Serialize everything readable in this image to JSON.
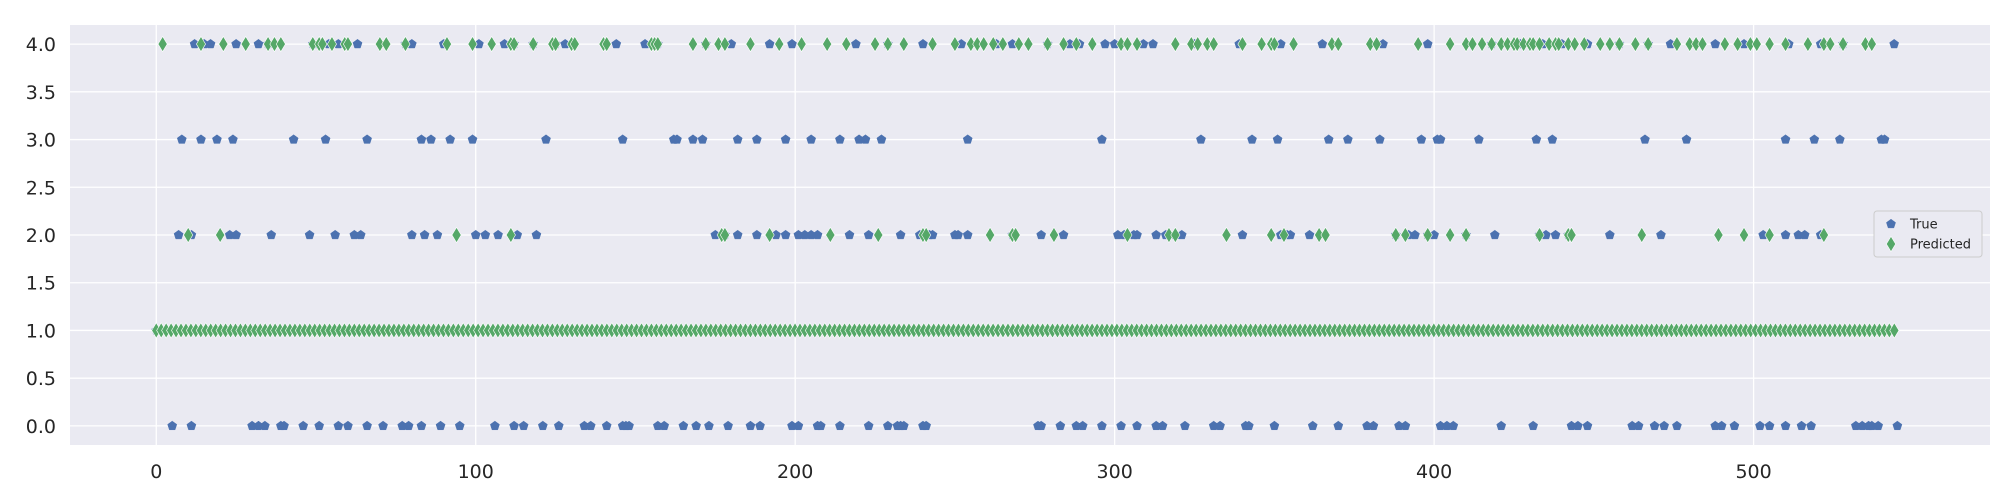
{
  "chart_data": {
    "type": "scatter",
    "title": "",
    "xlabel": "",
    "ylabel": "",
    "xlim": [
      -27,
      574
    ],
    "ylim": [
      -0.2,
      4.2
    ],
    "xticks": [
      0,
      100,
      200,
      300,
      400,
      500
    ],
    "yticks": [
      0.0,
      0.5,
      1.0,
      1.5,
      2.0,
      2.5,
      3.0,
      3.5,
      4.0
    ],
    "xtick_labels": [
      "0",
      "100",
      "200",
      "300",
      "400",
      "500"
    ],
    "ytick_labels": [
      "0.0",
      "0.5",
      "1.0",
      "1.5",
      "2.0",
      "2.5",
      "3.0",
      "3.5",
      "4.0"
    ],
    "grid": true,
    "legend_position": "center-right",
    "background": "#eaeaf2",
    "series": [
      {
        "name": "True",
        "marker": "pentagon",
        "color": "#4c72b0",
        "points_by_y": [
          {
            "y": 4,
            "x": [
              12,
              15,
              17,
              25,
              32,
              35,
              49,
              51,
              54,
              57,
              63,
              78,
              80,
              90,
              101,
              109,
              112,
              118,
              125,
              128,
              144,
              153,
              155,
              157,
              172,
              180,
              192,
              199,
              219,
              229,
              240,
              252,
              263,
              268,
              279,
              286,
              289,
              297,
              300,
              309,
              312,
              325,
              339,
              352,
              365,
              384,
              398,
              418,
              427,
              434,
              440,
              448,
              458,
              467,
              474,
              488,
              497,
              511,
              521,
              528,
              544
            ]
          },
          {
            "y": 3,
            "x": [
              8,
              14,
              19,
              24,
              43,
              53,
              66,
              83,
              86,
              92,
              99,
              122,
              146,
              162,
              163,
              168,
              171,
              182,
              188,
              197,
              205,
              214,
              220,
              222,
              227,
              254,
              296,
              327,
              343,
              351,
              367,
              373,
              383,
              396,
              401,
              402,
              414,
              432,
              437,
              466,
              479,
              510,
              519,
              527,
              540,
              541
            ]
          },
          {
            "y": 2,
            "x": [
              7,
              11,
              23,
              25,
              36,
              48,
              56,
              62,
              64,
              80,
              84,
              88,
              100,
              103,
              107,
              113,
              119,
              175,
              178,
              182,
              188,
              194,
              197,
              201,
              203,
              205,
              207,
              217,
              223,
              233,
              239,
              242,
              243,
              250,
              251,
              254,
              268,
              277,
              284,
              301,
              303,
              306,
              307,
              313,
              316,
              319,
              321,
              340,
              352,
              354,
              355,
              361,
              388,
              392,
              394,
              398,
              400,
              410,
              419,
              433,
              435,
              438,
              442,
              455,
              471,
              503,
              510,
              514,
              516,
              521
            ]
          },
          {
            "y": 1,
            "x": [
              0,
              525
            ]
          },
          {
            "y": 0,
            "x": [
              5,
              11,
              30,
              32,
              34,
              39,
              40,
              46,
              51,
              57,
              60,
              66,
              71,
              77,
              79,
              83,
              89,
              95,
              106,
              112,
              115,
              121,
              126,
              134,
              136,
              141,
              146,
              147,
              148,
              157,
              159,
              165,
              169,
              173,
              179,
              186,
              189,
              199,
              201,
              207,
              208,
              214,
              223,
              229,
              232,
              233,
              234,
              240,
              241,
              276,
              277,
              283,
              288,
              290,
              296,
              302,
              307,
              313,
              315,
              322,
              331,
              333,
              341,
              342,
              350,
              362,
              370,
              379,
              381,
              389,
              391,
              402,
              404,
              406,
              421,
              431,
              443,
              445,
              448,
              462,
              464,
              469,
              472,
              476,
              488,
              490,
              494,
              502,
              505,
              510,
              515,
              518,
              532,
              534,
              536,
              537,
              539,
              545
            ]
          }
        ]
      },
      {
        "name": "Predicted",
        "marker": "diamond",
        "color": "#55a868",
        "points_by_y": [
          {
            "y": 4,
            "x": [
              2,
              14,
              21,
              28,
              35,
              37,
              39,
              49,
              51,
              52,
              55,
              59,
              60,
              70,
              72,
              78,
              91,
              99,
              105,
              111,
              112,
              118,
              124,
              125,
              130,
              131,
              140,
              141,
              155,
              156,
              157,
              168,
              172,
              176,
              178,
              186,
              195,
              202,
              210,
              216,
              225,
              229,
              234,
              243,
              250,
              255,
              257,
              259,
              262,
              265,
              270,
              273,
              279,
              284,
              288,
              293,
              302,
              304,
              307,
              319,
              324,
              326,
              329,
              331,
              340,
              346,
              349,
              350,
              356,
              368,
              370,
              380,
              382,
              395,
              405,
              410,
              412,
              415,
              418,
              421,
              423,
              425,
              426,
              428,
              430,
              431,
              433,
              436,
              438,
              439,
              442,
              444,
              447,
              452,
              455,
              458,
              463,
              467,
              476,
              480,
              482,
              484,
              491,
              495,
              499,
              501,
              505,
              510,
              517,
              522,
              524,
              528,
              535,
              537
            ]
          },
          {
            "y": 2,
            "x": [
              10,
              20,
              94,
              111,
              177,
              178,
              192,
              211,
              226,
              240,
              241,
              261,
              268,
              269,
              281,
              304,
              317,
              319,
              335,
              349,
              353,
              364,
              366,
              388,
              391,
              398,
              405,
              410,
              433,
              442,
              443,
              465,
              489,
              497,
              505,
              522
            ]
          },
          {
            "y": 1,
            "x": {
              "from": 0,
              "to": 545,
              "step": 1.55
            }
          },
          {
            "y": 0,
            "x": []
          }
        ]
      }
    ]
  }
}
